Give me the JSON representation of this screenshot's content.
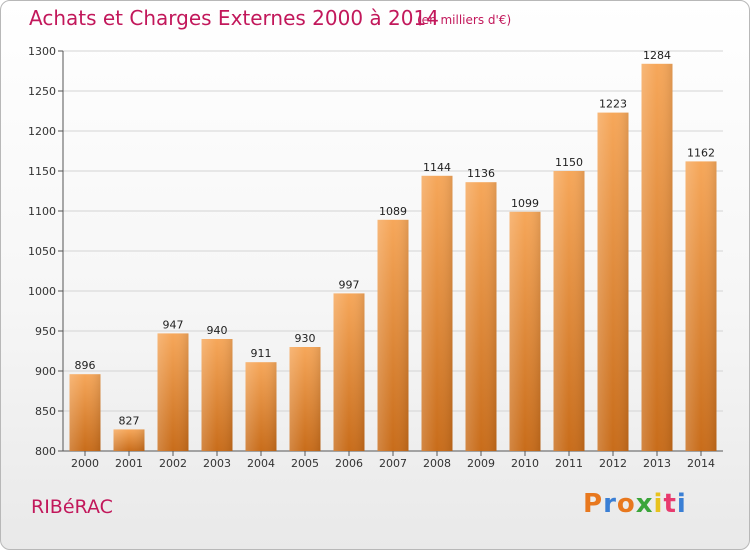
{
  "header": {
    "title": "Achats et Charges Externes 2000 à 2014",
    "subtitle": "(en milliers d'€)"
  },
  "footer": {
    "location": "RIBéRAC",
    "logo": "Proxiti"
  },
  "colors": {
    "title": "#c2185b",
    "bar_top": "#f6a75a",
    "bar_bottom": "#c86c1a",
    "logo_letters": [
      "#e8781e",
      "#3a7fd5",
      "#e8781e",
      "#3aa53a",
      "#e8c21e",
      "#e83a6e",
      "#3a7fd5"
    ]
  },
  "chart_data": {
    "type": "bar",
    "categories": [
      "2000",
      "2001",
      "2002",
      "2003",
      "2004",
      "2005",
      "2006",
      "2007",
      "2008",
      "2009",
      "2010",
      "2011",
      "2012",
      "2013",
      "2014"
    ],
    "values": [
      896,
      827,
      947,
      940,
      911,
      930,
      997,
      1089,
      1144,
      1136,
      1099,
      1150,
      1223,
      1284,
      1162
    ],
    "ylim": [
      800,
      1300
    ],
    "yticks": [
      800,
      850,
      900,
      950,
      1000,
      1050,
      1100,
      1150,
      1200,
      1250,
      1300
    ],
    "grid": true
  }
}
